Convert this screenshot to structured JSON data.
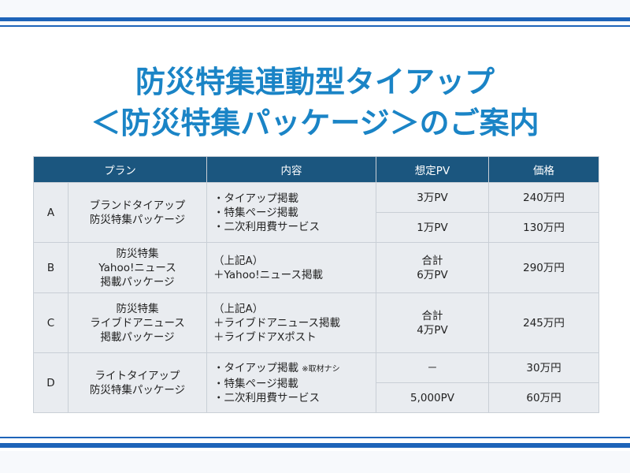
{
  "title": {
    "line1": "防災特集連動型タイアップ",
    "line2": "＜防災特集パッケージ＞のご案内"
  },
  "table": {
    "headers": {
      "plan": "プラン",
      "content": "内容",
      "pv": "想定PV",
      "price": "価格"
    },
    "rows": [
      {
        "id": "A",
        "name": [
          "ブランドタイアップ",
          "防災特集パッケージ"
        ],
        "content": [
          "・タイアップ掲載",
          "・特集ページ掲載",
          "・二次利用費サービス"
        ],
        "options": [
          {
            "pv": "3万PV",
            "price": "240万円"
          },
          {
            "pv": "1万PV",
            "price": "130万円"
          }
        ]
      },
      {
        "id": "B",
        "name": [
          "防災特集",
          "Yahoo!ニュース",
          "掲載パッケージ"
        ],
        "content": [
          "（上記A）",
          "＋Yahoo!ニュース掲載"
        ],
        "pv": [
          "合計",
          "6万PV"
        ],
        "price": "290万円"
      },
      {
        "id": "C",
        "name": [
          "防災特集",
          "ライブドアニュース",
          "掲載パッケージ"
        ],
        "content": [
          "（上記A）",
          "＋ライブドアニュース掲載",
          "＋ライブドアXポスト"
        ],
        "pv": [
          "合計",
          "4万PV"
        ],
        "price": "245万円"
      },
      {
        "id": "D",
        "name": [
          "ライトタイアップ",
          "防災特集パッケージ"
        ],
        "content": [
          "・タイアップ掲載",
          "・特集ページ掲載",
          "・二次利用費サービス"
        ],
        "content_note": "※取材ナシ",
        "options": [
          {
            "pv": "－",
            "price": "30万円"
          },
          {
            "pv": "5,000PV",
            "price": "60万円"
          }
        ]
      }
    ]
  },
  "colors": {
    "title": "#1a84c6",
    "rule": "#1e64b9",
    "header_bg": "#1b567f",
    "cell_bg": "#e9ecf0",
    "border": "#c9cfd6"
  }
}
